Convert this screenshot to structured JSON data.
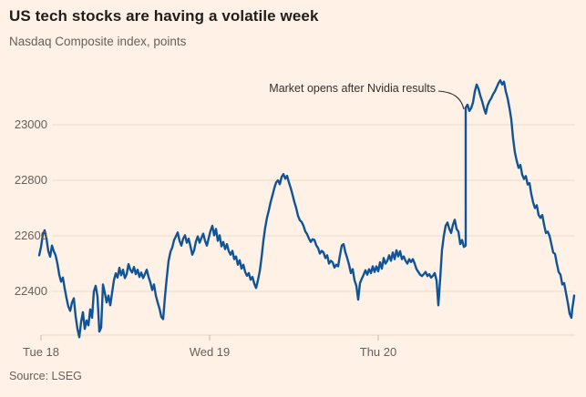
{
  "header": {
    "title": "US tech stocks are having a volatile week",
    "subtitle": "Nasdaq Composite index, points"
  },
  "annotation": {
    "label": "Market opens after Nvidia results"
  },
  "footer": {
    "source": "Source: LSEG"
  },
  "colors": {
    "background": "#FFF1E5",
    "line": "#0F5499",
    "grid": "#ECDCCB",
    "baseline": "#E7D6C3",
    "tick": "#C9B7A6",
    "text_dark": "#33302E",
    "text_muted": "#66605C"
  },
  "chart_data": {
    "type": "line",
    "title": "US tech stocks are having a volatile week",
    "ylabel": "Nasdaq Composite index, points",
    "legend": "none",
    "grid": "horizontal",
    "ylim": [
      22210,
      23200
    ],
    "yticks": [
      23000,
      22800,
      22600,
      22400
    ],
    "xticks": [
      {
        "label": "Tue 18",
        "x": 45
      },
      {
        "label": "Wed 19",
        "x": 230
      },
      {
        "label": "Thu 20",
        "x": 415
      }
    ],
    "annotation": "Market opens after Nvidia results",
    "notes": "Intraday series; vertical jump of ~500 points at Thursday open after Nvidia results; x stored as pixel position along time axis, value in index points",
    "series": [
      {
        "name": "Nasdaq Composite",
        "points": [
          [
            43,
            22530
          ],
          [
            45,
            22560
          ],
          [
            47,
            22605
          ],
          [
            49,
            22620
          ],
          [
            51,
            22590
          ],
          [
            53,
            22545
          ],
          [
            55,
            22525
          ],
          [
            57,
            22565
          ],
          [
            59,
            22545
          ],
          [
            61,
            22530
          ],
          [
            63,
            22500
          ],
          [
            65,
            22460
          ],
          [
            67,
            22435
          ],
          [
            69,
            22450
          ],
          [
            71,
            22410
          ],
          [
            73,
            22375
          ],
          [
            75,
            22345
          ],
          [
            77,
            22330
          ],
          [
            79,
            22360
          ],
          [
            81,
            22375
          ],
          [
            83,
            22310
          ],
          [
            85,
            22265
          ],
          [
            87,
            22235
          ],
          [
            89,
            22290
          ],
          [
            91,
            22325
          ],
          [
            93,
            22265
          ],
          [
            95,
            22295
          ],
          [
            97,
            22278
          ],
          [
            99,
            22335
          ],
          [
            101,
            22305
          ],
          [
            103,
            22400
          ],
          [
            105,
            22420
          ],
          [
            107,
            22380
          ],
          [
            109,
            22255
          ],
          [
            111,
            22270
          ],
          [
            113,
            22425
          ],
          [
            115,
            22395
          ],
          [
            117,
            22360
          ],
          [
            119,
            22385
          ],
          [
            121,
            22350
          ],
          [
            123,
            22395
          ],
          [
            125,
            22440
          ],
          [
            127,
            22465
          ],
          [
            129,
            22450
          ],
          [
            131,
            22485
          ],
          [
            133,
            22458
          ],
          [
            135,
            22478
          ],
          [
            137,
            22448
          ],
          [
            139,
            22462
          ],
          [
            141,
            22498
          ],
          [
            143,
            22478
          ],
          [
            145,
            22468
          ],
          [
            147,
            22488
          ],
          [
            149,
            22462
          ],
          [
            151,
            22478
          ],
          [
            153,
            22452
          ],
          [
            155,
            22468
          ],
          [
            157,
            22448
          ],
          [
            159,
            22462
          ],
          [
            161,
            22478
          ],
          [
            163,
            22452
          ],
          [
            165,
            22432
          ],
          [
            167,
            22405
          ],
          [
            169,
            22425
          ],
          [
            171,
            22385
          ],
          [
            173,
            22360
          ],
          [
            175,
            22338
          ],
          [
            177,
            22308
          ],
          [
            179,
            22300
          ],
          [
            181,
            22380
          ],
          [
            183,
            22450
          ],
          [
            185,
            22510
          ],
          [
            187,
            22542
          ],
          [
            189,
            22558
          ],
          [
            191,
            22585
          ],
          [
            193,
            22598
          ],
          [
            195,
            22612
          ],
          [
            197,
            22582
          ],
          [
            199,
            22565
          ],
          [
            201,
            22590
          ],
          [
            203,
            22602
          ],
          [
            205,
            22575
          ],
          [
            207,
            22590
          ],
          [
            209,
            22562
          ],
          [
            211,
            22532
          ],
          [
            213,
            22548
          ],
          [
            215,
            22580
          ],
          [
            217,
            22598
          ],
          [
            219,
            22575
          ],
          [
            221,
            22592
          ],
          [
            223,
            22608
          ],
          [
            225,
            22582
          ],
          [
            227,
            22565
          ],
          [
            229,
            22592
          ],
          [
            231,
            22618
          ],
          [
            233,
            22636
          ],
          [
            235,
            22602
          ],
          [
            237,
            22625
          ],
          [
            239,
            22582
          ],
          [
            241,
            22602
          ],
          [
            243,
            22562
          ],
          [
            245,
            22578
          ],
          [
            247,
            22552
          ],
          [
            249,
            22570
          ],
          [
            251,
            22545
          ],
          [
            253,
            22532
          ],
          [
            255,
            22546
          ],
          [
            257,
            22516
          ],
          [
            259,
            22526
          ],
          [
            261,
            22496
          ],
          [
            263,
            22512
          ],
          [
            265,
            22482
          ],
          [
            267,
            22496
          ],
          [
            269,
            22470
          ],
          [
            271,
            22456
          ],
          [
            273,
            22466
          ],
          [
            275,
            22442
          ],
          [
            277,
            22452
          ],
          [
            279,
            22428
          ],
          [
            281,
            22412
          ],
          [
            283,
            22440
          ],
          [
            285,
            22472
          ],
          [
            287,
            22522
          ],
          [
            289,
            22582
          ],
          [
            291,
            22630
          ],
          [
            293,
            22666
          ],
          [
            295,
            22692
          ],
          [
            297,
            22722
          ],
          [
            299,
            22746
          ],
          [
            301,
            22772
          ],
          [
            303,
            22792
          ],
          [
            305,
            22800
          ],
          [
            307,
            22786
          ],
          [
            309,
            22812
          ],
          [
            311,
            22822
          ],
          [
            313,
            22806
          ],
          [
            315,
            22816
          ],
          [
            317,
            22792
          ],
          [
            319,
            22772
          ],
          [
            321,
            22748
          ],
          [
            323,
            22722
          ],
          [
            325,
            22700
          ],
          [
            327,
            22672
          ],
          [
            329,
            22656
          ],
          [
            331,
            22650
          ],
          [
            333,
            22636
          ],
          [
            335,
            22616
          ],
          [
            337,
            22606
          ],
          [
            339,
            22590
          ],
          [
            341,
            22578
          ],
          [
            343,
            22588
          ],
          [
            345,
            22585
          ],
          [
            347,
            22566
          ],
          [
            349,
            22556
          ],
          [
            351,
            22536
          ],
          [
            353,
            22546
          ],
          [
            355,
            22540
          ],
          [
            357,
            22520
          ],
          [
            359,
            22530
          ],
          [
            361,
            22500
          ],
          [
            363,
            22510
          ],
          [
            365,
            22505
          ],
          [
            367,
            22486
          ],
          [
            369,
            22496
          ],
          [
            371,
            22490
          ],
          [
            373,
            22530
          ],
          [
            375,
            22565
          ],
          [
            377,
            22570
          ],
          [
            379,
            22540
          ],
          [
            381,
            22520
          ],
          [
            383,
            22496
          ],
          [
            385,
            22466
          ],
          [
            387,
            22480
          ],
          [
            389,
            22440
          ],
          [
            391,
            22420
          ],
          [
            393,
            22370
          ],
          [
            395,
            22430
          ],
          [
            397,
            22446
          ],
          [
            399,
            22460
          ],
          [
            401,
            22476
          ],
          [
            403,
            22460
          ],
          [
            405,
            22480
          ],
          [
            407,
            22466
          ],
          [
            409,
            22490
          ],
          [
            411,
            22470
          ],
          [
            413,
            22490
          ],
          [
            415,
            22472
          ],
          [
            417,
            22505
          ],
          [
            419,
            22482
          ],
          [
            421,
            22520
          ],
          [
            423,
            22500
          ],
          [
            425,
            22510
          ],
          [
            427,
            22530
          ],
          [
            429,
            22510
          ],
          [
            431,
            22540
          ],
          [
            433,
            22516
          ],
          [
            435,
            22548
          ],
          [
            437,
            22526
          ],
          [
            439,
            22545
          ],
          [
            441,
            22516
          ],
          [
            443,
            22526
          ],
          [
            445,
            22510
          ],
          [
            447,
            22500
          ],
          [
            449,
            22516
          ],
          [
            451,
            22506
          ],
          [
            453,
            22516
          ],
          [
            455,
            22500
          ],
          [
            457,
            22480
          ],
          [
            459,
            22470
          ],
          [
            461,
            22460
          ],
          [
            463,
            22455
          ],
          [
            465,
            22462
          ],
          [
            467,
            22470
          ],
          [
            469,
            22455
          ],
          [
            471,
            22462
          ],
          [
            473,
            22450
          ],
          [
            475,
            22456
          ],
          [
            477,
            22466
          ],
          [
            479,
            22440
          ],
          [
            481,
            22350
          ],
          [
            483,
            22446
          ],
          [
            485,
            22550
          ],
          [
            487,
            22600
          ],
          [
            489,
            22636
          ],
          [
            491,
            22648
          ],
          [
            493,
            22625
          ],
          [
            495,
            22610
          ],
          [
            497,
            22640
          ],
          [
            499,
            22658
          ],
          [
            501,
            22625
          ],
          [
            503,
            22615
          ],
          [
            505,
            22570
          ],
          [
            507,
            22585
          ],
          [
            509,
            22560
          ],
          [
            511,
            22565
          ],
          [
            511,
            23062
          ],
          [
            513,
            23072
          ],
          [
            515,
            23050
          ],
          [
            517,
            23060
          ],
          [
            519,
            23080
          ],
          [
            521,
            23120
          ],
          [
            523,
            23145
          ],
          [
            525,
            23130
          ],
          [
            527,
            23105
          ],
          [
            529,
            23085
          ],
          [
            531,
            23060
          ],
          [
            533,
            23040
          ],
          [
            535,
            23070
          ],
          [
            537,
            23085
          ],
          [
            539,
            23095
          ],
          [
            541,
            23110
          ],
          [
            543,
            23120
          ],
          [
            545,
            23135
          ],
          [
            547,
            23150
          ],
          [
            549,
            23160
          ],
          [
            551,
            23145
          ],
          [
            553,
            23155
          ],
          [
            555,
            23120
          ],
          [
            557,
            23095
          ],
          [
            559,
            23060
          ],
          [
            561,
            23020
          ],
          [
            563,
            22950
          ],
          [
            565,
            22900
          ],
          [
            567,
            22870
          ],
          [
            569,
            22845
          ],
          [
            571,
            22855
          ],
          [
            573,
            22820
          ],
          [
            575,
            22805
          ],
          [
            577,
            22815
          ],
          [
            579,
            22785
          ],
          [
            581,
            22790
          ],
          [
            583,
            22750
          ],
          [
            585,
            22720
          ],
          [
            587,
            22700
          ],
          [
            589,
            22710
          ],
          [
            591,
            22675
          ],
          [
            593,
            22665
          ],
          [
            595,
            22675
          ],
          [
            597,
            22640
          ],
          [
            599,
            22610
          ],
          [
            601,
            22615
          ],
          [
            603,
            22600
          ],
          [
            605,
            22570
          ],
          [
            607,
            22540
          ],
          [
            609,
            22535
          ],
          [
            611,
            22500
          ],
          [
            613,
            22470
          ],
          [
            615,
            22460
          ],
          [
            617,
            22425
          ],
          [
            619,
            22430
          ],
          [
            621,
            22395
          ],
          [
            623,
            22360
          ],
          [
            625,
            22320
          ],
          [
            627,
            22305
          ],
          [
            628,
            22340
          ],
          [
            629,
            22360
          ],
          [
            630,
            22385
          ]
        ]
      }
    ]
  }
}
